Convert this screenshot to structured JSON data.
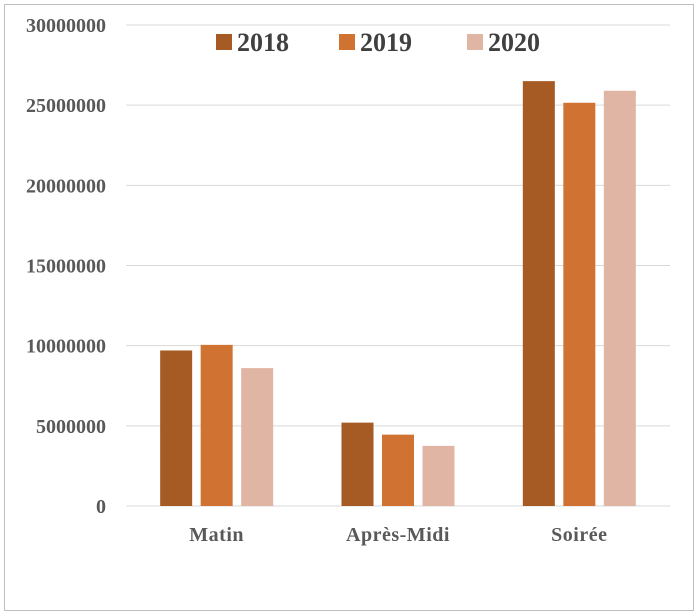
{
  "chart_data": {
    "type": "bar",
    "categories": [
      "Matin",
      "Après-Midi",
      "Soirée"
    ],
    "series": [
      {
        "name": "2018",
        "color": "#A65A24",
        "values": [
          9700000,
          5200000,
          26500000
        ]
      },
      {
        "name": "2019",
        "color": "#CF7232",
        "values": [
          10050000,
          4450000,
          25150000
        ]
      },
      {
        "name": "2020",
        "color": "#E0B5A4",
        "values": [
          8600000,
          3750000,
          25900000
        ]
      }
    ],
    "ylim": [
      0,
      30000000
    ],
    "yticks": [
      "0",
      "5000000",
      "10000000",
      "15000000",
      "20000000",
      "25000000",
      "30000000"
    ],
    "grid": true,
    "legend": "top",
    "title": "",
    "xlabel": "",
    "ylabel": ""
  }
}
